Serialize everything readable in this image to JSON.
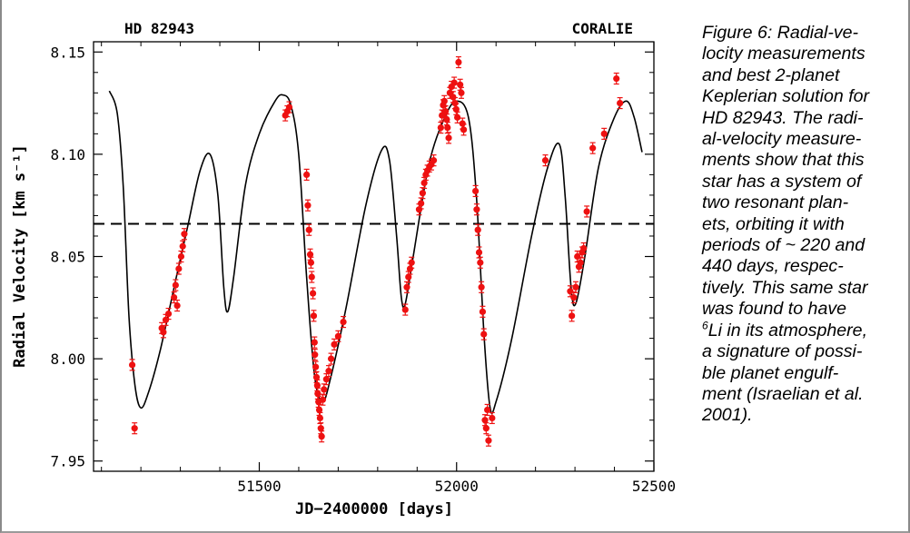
{
  "chart_data": {
    "type": "scatter",
    "title_left": "HD 82943",
    "title_right": "CORALIE",
    "xlabel": "JD−2400000 [days]",
    "ylabel": "Radial Velocity [km s⁻¹]",
    "xlim": [
      51080,
      52500
    ],
    "ylim": [
      7.945,
      8.155
    ],
    "x_ticks": [
      51500,
      52000,
      52500
    ],
    "y_ticks": [
      7.95,
      8.0,
      8.05,
      8.1,
      8.15
    ],
    "x_tick_labels": [
      "51500",
      "52000",
      "52500"
    ],
    "y_tick_labels": [
      "7.95",
      "8.00",
      "8.05",
      "8.10",
      "8.15"
    ],
    "reference_line": 8.066,
    "grid": false,
    "marker_color": "#ee1111",
    "fit_curve": [
      [
        51120,
        8.131
      ],
      [
        51140,
        8.12
      ],
      [
        51155,
        8.085
      ],
      [
        51170,
        8.02
      ],
      [
        51185,
        7.987
      ],
      [
        51200,
        7.976
      ],
      [
        51220,
        7.984
      ],
      [
        51250,
        8.005
      ],
      [
        51290,
        8.04
      ],
      [
        51320,
        8.066
      ],
      [
        51350,
        8.092
      ],
      [
        51375,
        8.1
      ],
      [
        51395,
        8.08
      ],
      [
        51410,
        8.035
      ],
      [
        51420,
        8.023
      ],
      [
        51435,
        8.04
      ],
      [
        51465,
        8.085
      ],
      [
        51500,
        8.11
      ],
      [
        51540,
        8.126
      ],
      [
        51560,
        8.129
      ],
      [
        51580,
        8.124
      ],
      [
        51600,
        8.1
      ],
      [
        51620,
        8.04
      ],
      [
        51640,
        7.992
      ],
      [
        51660,
        7.979
      ],
      [
        51680,
        7.99
      ],
      [
        51720,
        8.025
      ],
      [
        51770,
        8.075
      ],
      [
        51810,
        8.102
      ],
      [
        51830,
        8.097
      ],
      [
        51848,
        8.06
      ],
      [
        51860,
        8.03
      ],
      [
        51870,
        8.027
      ],
      [
        51890,
        8.05
      ],
      [
        51930,
        8.095
      ],
      [
        51970,
        8.118
      ],
      [
        52000,
        8.126
      ],
      [
        52030,
        8.118
      ],
      [
        52050,
        8.08
      ],
      [
        52070,
        8.01
      ],
      [
        52085,
        7.976
      ],
      [
        52100,
        7.979
      ],
      [
        52140,
        8.01
      ],
      [
        52190,
        8.06
      ],
      [
        52230,
        8.093
      ],
      [
        52260,
        8.105
      ],
      [
        52275,
        8.08
      ],
      [
        52290,
        8.035
      ],
      [
        52302,
        8.027
      ],
      [
        52325,
        8.05
      ],
      [
        52360,
        8.094
      ],
      [
        52400,
        8.118
      ],
      [
        52430,
        8.126
      ],
      [
        52450,
        8.118
      ],
      [
        52470,
        8.101
      ]
    ],
    "points": [
      [
        51178,
        7.997
      ],
      [
        51184,
        7.966
      ],
      [
        51253,
        8.015
      ],
      [
        51257,
        8.013
      ],
      [
        51263,
        8.019
      ],
      [
        51270,
        8.022
      ],
      [
        51284,
        8.03
      ],
      [
        51288,
        8.036
      ],
      [
        51292,
        8.026
      ],
      [
        51296,
        8.044
      ],
      [
        51302,
        8.05
      ],
      [
        51306,
        8.055
      ],
      [
        51310,
        8.061
      ],
      [
        51566,
        8.119
      ],
      [
        51571,
        8.121
      ],
      [
        51576,
        8.123
      ],
      [
        51620,
        8.09
      ],
      [
        51623,
        8.075
      ],
      [
        51626,
        8.063
      ],
      [
        51629,
        8.051
      ],
      [
        51631,
        8.047
      ],
      [
        51633,
        8.04
      ],
      [
        51636,
        8.032
      ],
      [
        51638,
        8.021
      ],
      [
        51640,
        8.008
      ],
      [
        51641,
        8.002
      ],
      [
        51643,
        7.996
      ],
      [
        51645,
        7.991
      ],
      [
        51647,
        7.987
      ],
      [
        51648,
        7.983
      ],
      [
        51650,
        7.979
      ],
      [
        51652,
        7.975
      ],
      [
        51654,
        7.971
      ],
      [
        51656,
        7.966
      ],
      [
        51658,
        7.962
      ],
      [
        51661,
        7.98
      ],
      [
        51664,
        7.985
      ],
      [
        51670,
        7.99
      ],
      [
        51676,
        7.994
      ],
      [
        51682,
        8.0
      ],
      [
        51690,
        8.007
      ],
      [
        51700,
        8.011
      ],
      [
        51713,
        8.018
      ],
      [
        51870,
        8.024
      ],
      [
        51874,
        8.035
      ],
      [
        51878,
        8.04
      ],
      [
        51882,
        8.044
      ],
      [
        51886,
        8.047
      ],
      [
        51905,
        8.073
      ],
      [
        51910,
        8.076
      ],
      [
        51914,
        8.081
      ],
      [
        51918,
        8.086
      ],
      [
        51922,
        8.09
      ],
      [
        51926,
        8.092
      ],
      [
        51931,
        8.094
      ],
      [
        51936,
        8.095
      ],
      [
        51942,
        8.097
      ],
      [
        51960,
        8.113
      ],
      [
        51963,
        8.119
      ],
      [
        51966,
        8.124
      ],
      [
        51969,
        8.126
      ],
      [
        51972,
        8.121
      ],
      [
        51975,
        8.117
      ],
      [
        51977,
        8.113
      ],
      [
        51980,
        8.108
      ],
      [
        51983,
        8.13
      ],
      [
        51987,
        8.133
      ],
      [
        51991,
        8.128
      ],
      [
        51994,
        8.135
      ],
      [
        51996,
        8.125
      ],
      [
        51999,
        8.122
      ],
      [
        52002,
        8.118
      ],
      [
        52005,
        8.145
      ],
      [
        52009,
        8.134
      ],
      [
        52012,
        8.13
      ],
      [
        52015,
        8.115
      ],
      [
        52018,
        8.112
      ],
      [
        52048,
        8.082
      ],
      [
        52051,
        8.073
      ],
      [
        52054,
        8.063
      ],
      [
        52057,
        8.052
      ],
      [
        52060,
        8.047
      ],
      [
        52063,
        8.035
      ],
      [
        52066,
        8.023
      ],
      [
        52069,
        8.012
      ],
      [
        52072,
        7.97
      ],
      [
        52075,
        7.966
      ],
      [
        52078,
        7.975
      ],
      [
        52081,
        7.96
      ],
      [
        52090,
        7.971
      ],
      [
        52225,
        8.097
      ],
      [
        52288,
        8.033
      ],
      [
        52292,
        8.021
      ],
      [
        52297,
        8.03
      ],
      [
        52302,
        8.035
      ],
      [
        52306,
        8.05
      ],
      [
        52310,
        8.045
      ],
      [
        52314,
        8.047
      ],
      [
        52318,
        8.052
      ],
      [
        52322,
        8.054
      ],
      [
        52330,
        8.072
      ],
      [
        52345,
        8.103
      ],
      [
        52374,
        8.11
      ],
      [
        52405,
        8.137
      ],
      [
        52414,
        8.125
      ]
    ]
  },
  "caption": {
    "lines": [
      "Figure 6: Radial-ve-",
      "locity measurements",
      "and best 2-planet",
      "Keplerian solution for",
      "HD 82943. The radi-",
      "al-velocity measure-",
      "ments show that this",
      "star has a system of",
      "two resonant plan-",
      "ets, orbiting it with",
      "periods of ~ 220 and",
      "440 days, respec-",
      "tively. This same star",
      "was found to have"
    ],
    "lithium_superscript": "6",
    "lithium_line_rest": "Li in its atmosphere,",
    "lines_after": [
      "a signature of possi-",
      "ble planet engulf-",
      "ment (Israelian et al.",
      "2001)."
    ]
  }
}
